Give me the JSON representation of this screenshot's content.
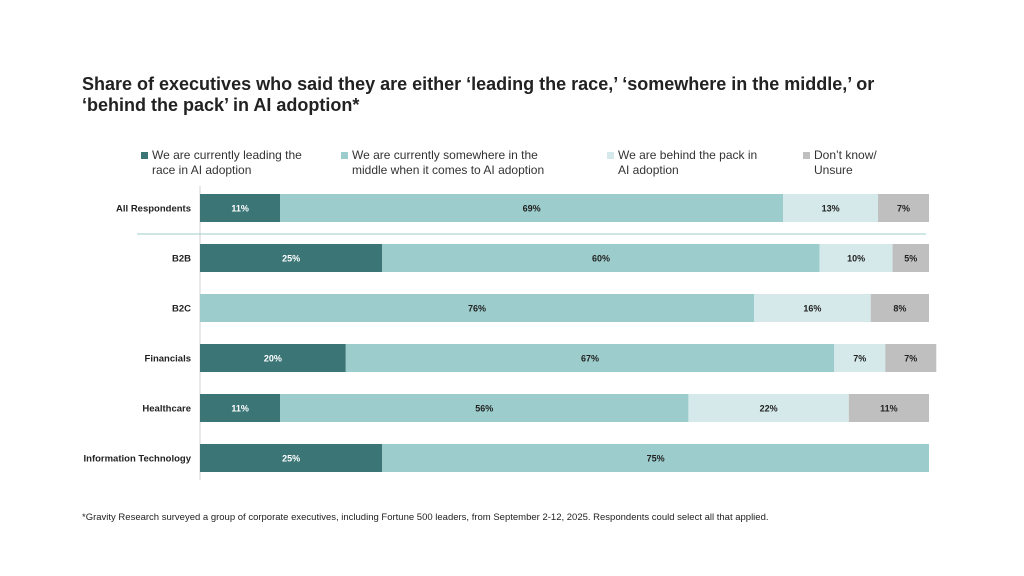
{
  "title": "Share of executives who said they are either ‘leading the race,’ ‘somewhere in the middle,’ or ‘behind the pack’ in AI adoption*",
  "footnote": "*Gravity Research surveyed a group of corporate executives, including Fortune 500 leaders, from September 2-12, 2025. Respondents could select all that applied.",
  "chart_data": {
    "type": "bar",
    "orientation": "horizontal",
    "stacked": true,
    "title": "Share of executives who said they are either ‘leading the race,’ ‘somewhere in the middle,’ or ‘behind the pack’ in AI adoption*",
    "legend_position": "top",
    "categories": [
      "All Respondents",
      "B2B",
      "B2C",
      "Financials",
      "Healthcare",
      "Information Technology"
    ],
    "series": [
      {
        "name": "We are currently leading the race in AI adoption",
        "color": "#3b7576",
        "label_color": "#ffffff",
        "values": [
          11,
          25,
          0,
          20,
          11,
          25
        ]
      },
      {
        "name": "We are currently somewhere in the middle when it comes to AI adoption",
        "color": "#9ccdcc",
        "label_color": "#222222",
        "values": [
          69,
          60,
          76,
          67,
          56,
          75
        ]
      },
      {
        "name": "We are behind the pack in AI adoption",
        "color": "#d5e9ea",
        "label_color": "#222222",
        "values": [
          13,
          10,
          16,
          7,
          22,
          0
        ]
      },
      {
        "name": "Don’t know/ Unsure",
        "color": "#bfbfbf",
        "label_color": "#222222",
        "values": [
          7,
          5,
          8,
          7,
          11,
          0
        ]
      }
    ],
    "value_suffix": "%",
    "xlim": [
      0,
      100
    ]
  }
}
